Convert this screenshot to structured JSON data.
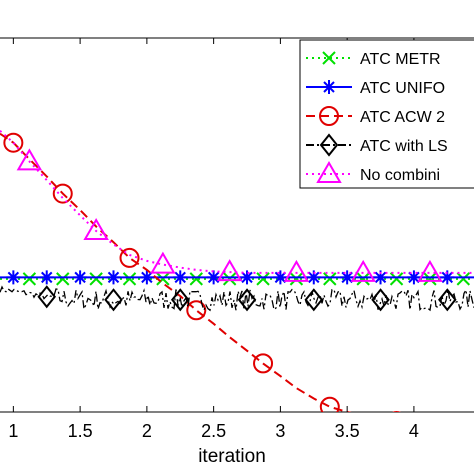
{
  "chart_data": {
    "type": "line",
    "xlabel": "iteration",
    "ylabel": "",
    "title": "",
    "xlim": [
      0.9,
      4.45
    ],
    "ylim": [
      -60,
      -10
    ],
    "x_ticks": [
      1,
      1.5,
      2,
      2.5,
      3,
      3.5,
      4
    ],
    "x_tick_labels": [
      "1",
      "1.5",
      "2",
      "2.5",
      "3",
      "3.5",
      "4"
    ],
    "grid": false,
    "legend_position": "top-right",
    "series": [
      {
        "name": "ATC METR",
        "color": "#00e000",
        "line_style": "dotted",
        "marker": "x",
        "x": [
          0.9,
          1.0,
          1.12,
          1.25,
          1.37,
          1.5,
          1.62,
          1.75,
          1.87,
          2.0,
          2.12,
          2.25,
          2.37,
          2.5,
          2.62,
          2.75,
          2.87,
          3.0,
          3.12,
          3.25,
          3.37,
          3.5,
          3.62,
          3.75,
          3.87,
          4.0,
          4.12,
          4.25,
          4.37,
          4.45
        ],
        "y": [
          -42.2,
          -42.2,
          -42.2,
          -42.2,
          -42.2,
          -42.2,
          -42.2,
          -42.2,
          -42.2,
          -42.2,
          -42.2,
          -42.2,
          -42.2,
          -42.2,
          -42.2,
          -42.2,
          -42.2,
          -42.2,
          -42.2,
          -42.2,
          -42.2,
          -42.2,
          -42.2,
          -42.2,
          -42.2,
          -42.2,
          -42.2,
          -42.2,
          -42.2,
          -42.2
        ]
      },
      {
        "name": "ATC UNIFO",
        "color": "#0000ff",
        "line_style": "solid",
        "marker": "asterisk",
        "x": [
          0.9,
          1.0,
          1.25,
          1.5,
          1.75,
          2.0,
          2.25,
          2.5,
          2.75,
          3.0,
          3.25,
          3.5,
          3.75,
          4.0,
          4.25,
          4.45
        ],
        "y": [
          -42.0,
          -42.0,
          -42.0,
          -42.0,
          -42.0,
          -42.0,
          -42.0,
          -42.0,
          -42.0,
          -42.0,
          -42.0,
          -42.0,
          -42.0,
          -42.0,
          -42.0,
          -42.0
        ]
      },
      {
        "name": "ATC ACW 2",
        "color": "#e00000",
        "line_style": "dashed",
        "marker": "circle",
        "x": [
          0.9,
          1.0,
          1.12,
          1.25,
          1.37,
          1.5,
          1.62,
          1.75,
          1.87,
          2.0,
          2.12,
          2.25,
          2.37,
          2.5,
          2.62,
          2.75,
          2.87,
          3.0,
          3.12,
          3.25,
          3.37,
          3.5,
          3.62,
          3.75,
          3.87,
          4.0,
          4.12,
          4.25,
          4.37,
          4.45
        ],
        "y": [
          -22.8,
          -24.0,
          -26.2,
          -28.5,
          -30.8,
          -33.0,
          -35.2,
          -37.3,
          -39.4,
          -41.0,
          -42.8,
          -44.5,
          -46.4,
          -48.2,
          -50.0,
          -51.8,
          -53.5,
          -55.2,
          -56.8,
          -58.2,
          -59.3,
          -60.0,
          -60.5,
          -60.9,
          -61.2,
          -61.4,
          -61.5,
          -61.5,
          -61.5,
          -61.5
        ]
      },
      {
        "name": "ATC with LS",
        "color": "#000000",
        "line_style": "dash-dot",
        "marker": "diamond",
        "x": [
          0.9,
          1.0,
          1.25,
          1.5,
          1.75,
          2.0,
          2.25,
          2.5,
          2.75,
          3.0,
          3.25,
          3.5,
          3.75,
          4.0,
          4.25,
          4.45
        ],
        "y": [
          -43.6,
          -43.8,
          -44.6,
          -45.0,
          -45.0,
          -45.0,
          -45.0,
          -45.0,
          -45.0,
          -45.0,
          -45.0,
          -45.0,
          -45.0,
          -45.0,
          -45.0,
          -45.0
        ]
      },
      {
        "name": "No combini",
        "color": "#ff00ff",
        "line_style": "dotted",
        "marker": "triangle",
        "x": [
          0.9,
          1.0,
          1.12,
          1.25,
          1.37,
          1.5,
          1.62,
          1.75,
          1.87,
          2.0,
          2.12,
          2.25,
          2.37,
          2.5,
          2.62,
          2.75,
          2.87,
          3.0,
          3.12,
          3.25,
          3.37,
          3.5,
          3.62,
          3.75,
          3.87,
          4.0,
          4.12,
          4.25,
          4.37,
          4.45
        ],
        "y": [
          -22.4,
          -24.0,
          -26.5,
          -29.0,
          -31.4,
          -33.7,
          -35.8,
          -37.6,
          -39.0,
          -39.8,
          -40.3,
          -40.7,
          -41.0,
          -41.2,
          -41.3,
          -41.4,
          -41.4,
          -41.4,
          -41.4,
          -41.4,
          -41.4,
          -41.4,
          -41.4,
          -41.4,
          -41.4,
          -41.4,
          -41.4,
          -41.4,
          -41.4,
          -41.4
        ]
      }
    ],
    "marker_x": {
      "ATC METR": [
        1.12,
        1.37,
        1.62,
        1.87,
        2.12,
        2.37,
        2.62,
        2.87,
        3.12,
        3.37,
        3.62,
        3.87,
        4.12,
        4.37
      ],
      "ATC UNIFO": [
        1.0,
        1.25,
        1.5,
        1.75,
        2.0,
        2.25,
        2.5,
        2.75,
        3.0,
        3.25,
        3.5,
        3.75,
        4.0,
        4.25
      ],
      "ATC ACW 2": [
        1.0,
        1.37,
        1.87,
        2.37,
        2.87,
        3.37,
        3.87
      ],
      "ATC with LS": [
        1.25,
        1.75,
        2.25,
        2.75,
        3.25,
        3.75,
        4.25
      ],
      "No combini": [
        1.12,
        1.62,
        2.12,
        2.62,
        3.12,
        3.62,
        4.12
      ]
    }
  }
}
